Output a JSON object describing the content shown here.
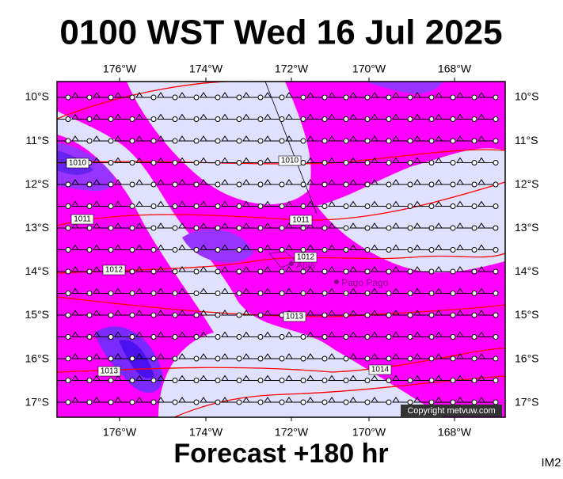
{
  "header": {
    "title": "0100 WST Wed 16 Jul 2025"
  },
  "map": {
    "longitude_labels": [
      "176°W",
      "174°W",
      "172°W",
      "170°W",
      "168°W"
    ],
    "latitude_labels": [
      "10°S",
      "11°S",
      "12°S",
      "13°S",
      "14°S",
      "15°S",
      "16°S",
      "17°S"
    ],
    "places": [
      "Apia",
      "Pago Pago"
    ],
    "isobar_labels": [
      "1010",
      "1010",
      "1011",
      "1011",
      "1012",
      "1012",
      "1013",
      "1013",
      "1014"
    ],
    "copyright": "Copyright metvuw.com"
  },
  "footer": {
    "forecast": "Forecast +180 hr",
    "code": "IM2"
  }
}
